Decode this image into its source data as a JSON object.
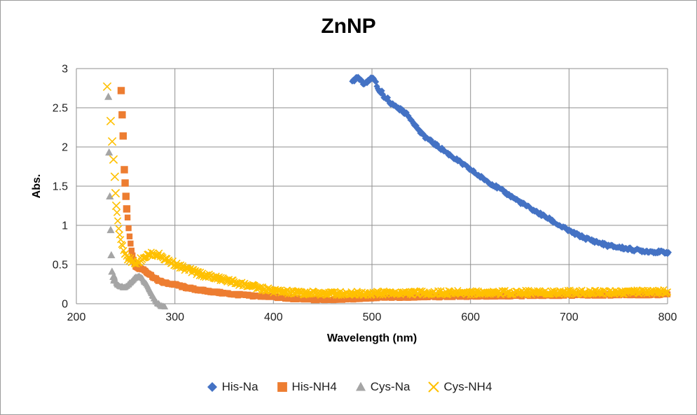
{
  "chart_data": {
    "type": "scatter",
    "title": "ZnNP",
    "xlabel": "Wavelength (nm)",
    "ylabel": "Abs.",
    "xlim": [
      200,
      800
    ],
    "ylim": [
      0,
      3
    ],
    "x_ticks": [
      200,
      300,
      400,
      500,
      600,
      700,
      800
    ],
    "y_ticks": [
      0,
      0.5,
      1,
      1.5,
      2,
      2.5,
      3
    ],
    "grid": true,
    "legend_position": "bottom",
    "grid_color": "#8f8f8f",
    "text_color": "#1f1f1f",
    "frame_color": "#9b9b9b",
    "series": [
      {
        "name": "His-Na",
        "marker": "diamond",
        "color": "#4472C4",
        "noise": 0.02,
        "step": 1,
        "sparse_points": [],
        "curve_points": [
          [
            480,
            2.83
          ],
          [
            483,
            2.87
          ],
          [
            486,
            2.88
          ],
          [
            489,
            2.84
          ],
          [
            492,
            2.8
          ],
          [
            495,
            2.82
          ],
          [
            498,
            2.86
          ],
          [
            501,
            2.88
          ],
          [
            504,
            2.84
          ],
          [
            506,
            2.73
          ],
          [
            508,
            2.68
          ],
          [
            510,
            2.7
          ],
          [
            512,
            2.63
          ],
          [
            514,
            2.6
          ],
          [
            516,
            2.63
          ],
          [
            518,
            2.57
          ],
          [
            521,
            2.54
          ],
          [
            525,
            2.51
          ],
          [
            530,
            2.47
          ],
          [
            535,
            2.42
          ],
          [
            540,
            2.35
          ],
          [
            545,
            2.26
          ],
          [
            550,
            2.17
          ],
          [
            560,
            2.07
          ],
          [
            570,
            1.98
          ],
          [
            580,
            1.89
          ],
          [
            590,
            1.8
          ],
          [
            600,
            1.71
          ],
          [
            610,
            1.62
          ],
          [
            620,
            1.54
          ],
          [
            630,
            1.46
          ],
          [
            640,
            1.38
          ],
          [
            650,
            1.3
          ],
          [
            660,
            1.22
          ],
          [
            670,
            1.15
          ],
          [
            680,
            1.08
          ],
          [
            690,
            1.0
          ],
          [
            700,
            0.93
          ],
          [
            710,
            0.87
          ],
          [
            720,
            0.82
          ],
          [
            730,
            0.78
          ],
          [
            740,
            0.74
          ],
          [
            750,
            0.72
          ],
          [
            760,
            0.7
          ],
          [
            770,
            0.68
          ],
          [
            780,
            0.67
          ],
          [
            790,
            0.66
          ],
          [
            801,
            0.655
          ]
        ]
      },
      {
        "name": "His-NH4",
        "marker": "square",
        "color": "#ED7D31",
        "noise": 0.012,
        "step": 1,
        "sparse_points": [
          [
            245.5,
            2.72
          ],
          [
            246.5,
            2.41
          ],
          [
            247.5,
            2.14
          ],
          [
            248.7,
            1.71
          ],
          [
            249.5,
            1.54
          ],
          [
            250.3,
            1.37
          ],
          [
            251.1,
            1.21
          ]
        ],
        "curve_points": [
          [
            252,
            1.1
          ],
          [
            253,
            0.97
          ],
          [
            254,
            0.86
          ],
          [
            255,
            0.77
          ],
          [
            256,
            0.69
          ],
          [
            257,
            0.62
          ],
          [
            258,
            0.55
          ],
          [
            259,
            0.51
          ],
          [
            260,
            0.48
          ],
          [
            262,
            0.455
          ],
          [
            264,
            0.45
          ],
          [
            266,
            0.445
          ],
          [
            268,
            0.44
          ],
          [
            270,
            0.42
          ],
          [
            272,
            0.4
          ],
          [
            274,
            0.38
          ],
          [
            276,
            0.36
          ],
          [
            278,
            0.34
          ],
          [
            280,
            0.32
          ],
          [
            283,
            0.3
          ],
          [
            286,
            0.28
          ],
          [
            290,
            0.265
          ],
          [
            295,
            0.255
          ],
          [
            300,
            0.245
          ],
          [
            310,
            0.21
          ],
          [
            320,
            0.185
          ],
          [
            330,
            0.165
          ],
          [
            340,
            0.15
          ],
          [
            350,
            0.135
          ],
          [
            360,
            0.12
          ],
          [
            370,
            0.11
          ],
          [
            380,
            0.1
          ],
          [
            390,
            0.095
          ],
          [
            400,
            0.088
          ],
          [
            415,
            0.07
          ],
          [
            430,
            0.058
          ],
          [
            445,
            0.052
          ],
          [
            460,
            0.055
          ],
          [
            480,
            0.065
          ],
          [
            500,
            0.075
          ],
          [
            530,
            0.085
          ],
          [
            560,
            0.09
          ],
          [
            600,
            0.098
          ],
          [
            640,
            0.103
          ],
          [
            680,
            0.108
          ],
          [
            720,
            0.112
          ],
          [
            760,
            0.115
          ],
          [
            800,
            0.12
          ]
        ]
      },
      {
        "name": "Cys-Na",
        "marker": "triangle",
        "color": "#A5A5A5",
        "noise": 0.012,
        "step": 0.5,
        "sparse_points": [
          [
            232.5,
            2.64
          ],
          [
            233.2,
            1.93
          ],
          [
            234.0,
            1.37
          ],
          [
            234.8,
            0.94
          ],
          [
            235.5,
            0.62
          ],
          [
            236.2,
            0.41
          ]
        ],
        "curve_points": [
          [
            236.8,
            0.33
          ],
          [
            237.5,
            0.28
          ],
          [
            238.5,
            0.35
          ],
          [
            239.5,
            0.3
          ],
          [
            240.5,
            0.26
          ],
          [
            242,
            0.24
          ],
          [
            244,
            0.225
          ],
          [
            246,
            0.215
          ],
          [
            248,
            0.21
          ],
          [
            250,
            0.215
          ],
          [
            252,
            0.23
          ],
          [
            254,
            0.26
          ],
          [
            256,
            0.29
          ],
          [
            258,
            0.315
          ],
          [
            260,
            0.33
          ],
          [
            262,
            0.345
          ],
          [
            264,
            0.345
          ],
          [
            266,
            0.33
          ],
          [
            268,
            0.3
          ],
          [
            270,
            0.265
          ],
          [
            272,
            0.225
          ],
          [
            274,
            0.18
          ],
          [
            276,
            0.13
          ],
          [
            278,
            0.085
          ],
          [
            280,
            0.04
          ],
          [
            282,
            0.01
          ],
          [
            284,
            -0.01
          ],
          [
            286,
            -0.025
          ],
          [
            288,
            -0.035
          ],
          [
            290,
            -0.04
          ]
        ]
      },
      {
        "name": "Cys-NH4",
        "marker": "x",
        "color": "#FFC000",
        "noise": 0.028,
        "step": 1,
        "sparse_points": [
          [
            231.3,
            2.77
          ],
          [
            234.8,
            2.33
          ],
          [
            236.3,
            2.07
          ],
          [
            237.7,
            1.84
          ],
          [
            239.0,
            1.62
          ],
          [
            239.8,
            1.41
          ],
          [
            240.5,
            1.25
          ]
        ],
        "curve_points": [
          [
            241.2,
            1.15
          ],
          [
            242,
            1.06
          ],
          [
            243,
            0.97
          ],
          [
            244,
            0.9
          ],
          [
            245,
            0.84
          ],
          [
            246,
            0.78
          ],
          [
            247,
            0.73
          ],
          [
            248,
            0.69
          ],
          [
            249,
            0.655
          ],
          [
            250,
            0.625
          ],
          [
            252,
            0.585
          ],
          [
            254,
            0.56
          ],
          [
            256,
            0.545
          ],
          [
            258,
            0.535
          ],
          [
            260,
            0.53
          ],
          [
            262,
            0.535
          ],
          [
            264,
            0.55
          ],
          [
            266,
            0.57
          ],
          [
            268,
            0.59
          ],
          [
            270,
            0.605
          ],
          [
            273,
            0.62
          ],
          [
            276,
            0.63
          ],
          [
            279,
            0.635
          ],
          [
            282,
            0.63
          ],
          [
            285,
            0.615
          ],
          [
            288,
            0.59
          ],
          [
            291,
            0.565
          ],
          [
            294,
            0.545
          ],
          [
            297,
            0.525
          ],
          [
            300,
            0.51
          ],
          [
            305,
            0.475
          ],
          [
            310,
            0.45
          ],
          [
            315,
            0.425
          ],
          [
            320,
            0.405
          ],
          [
            325,
            0.385
          ],
          [
            330,
            0.365
          ],
          [
            335,
            0.35
          ],
          [
            340,
            0.335
          ],
          [
            345,
            0.32
          ],
          [
            350,
            0.305
          ],
          [
            355,
            0.29
          ],
          [
            360,
            0.275
          ],
          [
            365,
            0.26
          ],
          [
            370,
            0.245
          ],
          [
            375,
            0.23
          ],
          [
            380,
            0.215
          ],
          [
            385,
            0.2
          ],
          [
            390,
            0.185
          ],
          [
            395,
            0.175
          ],
          [
            400,
            0.165
          ],
          [
            410,
            0.15
          ],
          [
            420,
            0.142
          ],
          [
            435,
            0.135
          ],
          [
            450,
            0.132
          ],
          [
            470,
            0.132
          ],
          [
            500,
            0.135
          ],
          [
            540,
            0.138
          ],
          [
            580,
            0.14
          ],
          [
            620,
            0.142
          ],
          [
            660,
            0.144
          ],
          [
            700,
            0.146
          ],
          [
            750,
            0.148
          ],
          [
            800,
            0.15
          ]
        ]
      }
    ]
  }
}
